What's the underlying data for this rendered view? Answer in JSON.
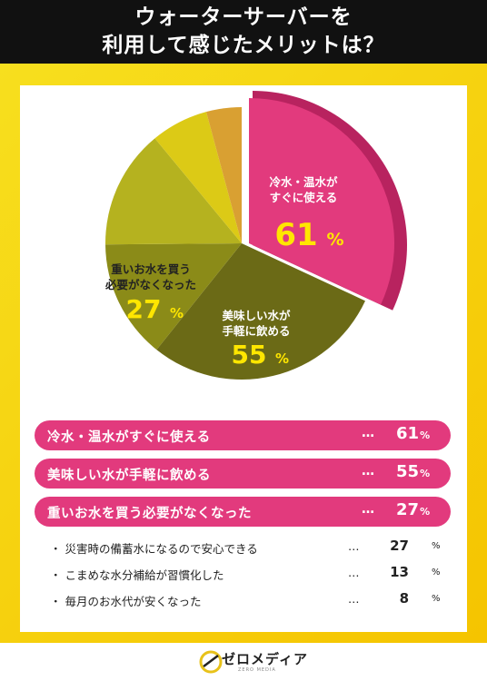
{
  "title": {
    "line1": "ウォーターサーバーを",
    "line2": "利用して感じたメリットは？"
  },
  "colors": {
    "pink": "#e23a7d",
    "pink_dark": "#b8235f",
    "olive_dark": "#6b6a16",
    "olive": "#8b8b18",
    "olive_light": "#b5b21f",
    "yellow": "#dcca16",
    "orange": "#d9a032"
  },
  "chart_data": {
    "type": "pie",
    "unit": "%",
    "slices": [
      {
        "label": "冷水・温水がすぐに使える",
        "value": 61,
        "label_lines": [
          "冷水・温水が",
          "すぐに使える"
        ],
        "color": "#e23a7d"
      },
      {
        "label": "美味しい水が手軽に飲める",
        "value": 55,
        "label_lines": [
          "美味しい水が",
          "手軽に飲める"
        ],
        "color": "#6b6a16"
      },
      {
        "label": "重いお水を買う必要がなくなった",
        "value": 27,
        "label_lines": [
          "重いお水を買う",
          "必要がなくなった"
        ],
        "color": "#8b8b18"
      },
      {
        "label": "災害時の備蓄水になるので安心できる",
        "value": 27,
        "color": "#b5b21f"
      },
      {
        "label": "こまめな水分補給が習慣化した",
        "value": 13,
        "color": "#dcca16"
      },
      {
        "label": "毎月のお水代が安くなった",
        "value": 8,
        "color": "#d9a032"
      }
    ]
  },
  "ranking": {
    "top": [
      {
        "label": "冷水・温水がすぐに使える",
        "dots": "…",
        "value": "61",
        "unit": "%"
      },
      {
        "label": "美味しい水が手軽に飲める",
        "dots": "…",
        "value": "55",
        "unit": "%"
      },
      {
        "label": "重いお水を買う必要がなくなった",
        "dots": "…",
        "value": "27",
        "unit": "%"
      }
    ],
    "rest": [
      {
        "label": "・ 災害時の備蓄水になるので安心できる",
        "dots": "…",
        "value": "27",
        "unit": "%"
      },
      {
        "label": "・ こまめな水分補給が習慣化した",
        "dots": "…",
        "value": "13",
        "unit": "%"
      },
      {
        "label": "・ 毎月のお水代が安くなった",
        "dots": "…",
        "value": "8",
        "unit": "%"
      }
    ]
  },
  "footer": {
    "logo_text": "ゼロメディア",
    "logo_sub": "ZERO MEDIA"
  }
}
